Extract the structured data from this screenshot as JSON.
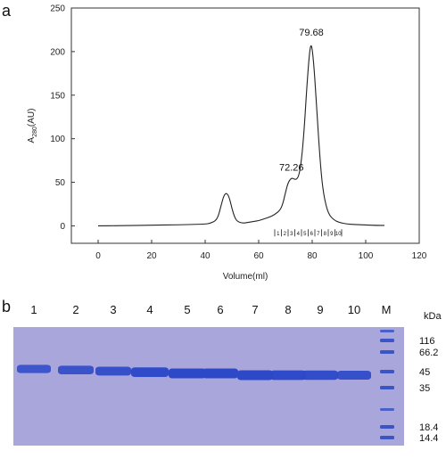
{
  "panel_a_label": "a",
  "panel_b_label": "b",
  "chart_data": {
    "type": "line",
    "xlabel": "Volume(ml)",
    "ylabel_main": "A",
    "ylabel_sub": "280",
    "ylabel_unit": "(AU)",
    "xlim": [
      -10,
      120
    ],
    "ylim": [
      -20,
      250
    ],
    "x_ticks": [
      0,
      20,
      40,
      60,
      80,
      100,
      120
    ],
    "y_ticks": [
      0,
      50,
      100,
      150,
      200,
      250
    ],
    "series": [
      {
        "x": [
          0,
          10,
          20,
          30,
          40,
          42,
          44,
          45,
          46,
          47,
          48,
          49,
          50,
          51,
          52,
          54,
          56,
          58,
          60,
          62,
          64,
          66,
          68,
          69,
          70,
          71,
          72.26,
          73,
          74,
          75,
          76,
          77,
          78,
          79,
          79.68,
          80.5,
          81.5,
          82.5,
          83.5,
          84.5,
          86,
          88,
          90,
          93,
          96,
          100,
          104,
          107
        ],
        "y": [
          0,
          0.3,
          0.8,
          1.2,
          2,
          3,
          6,
          12,
          24,
          35,
          38,
          33,
          20,
          10,
          5,
          3,
          4,
          5,
          6,
          8,
          10,
          13,
          18,
          25,
          38,
          50,
          55,
          54,
          53,
          57,
          75,
          110,
          160,
          200,
          210,
          190,
          145,
          95,
          55,
          32,
          14,
          7,
          4,
          2,
          1.5,
          1,
          0.5,
          0.5
        ]
      }
    ],
    "annotations": [
      {
        "text": "72.26",
        "x": 72.26,
        "y": 55
      },
      {
        "text": "79.68",
        "x": 79.68,
        "y": 210
      }
    ],
    "fractions": [
      "1",
      "2",
      "3",
      "4",
      "5",
      "6",
      "7",
      "8",
      "9",
      "10"
    ],
    "fraction_start": 66,
    "fraction_end": 91
  },
  "gel": {
    "lanes": [
      "1",
      "2",
      "3",
      "4",
      "5",
      "6",
      "7",
      "8",
      "9",
      "10",
      "M"
    ],
    "unit": "kDa",
    "markers": [
      "116",
      "66.2",
      "45",
      "35",
      "18.4",
      "14.4"
    ],
    "band_intensity": [
      0.72,
      0.78,
      0.82,
      0.95,
      1.0,
      1.0,
      1.0,
      0.95,
      0.92,
      0.82
    ],
    "background_color": "#a9a6dc",
    "band_color": "#2d49c8"
  }
}
